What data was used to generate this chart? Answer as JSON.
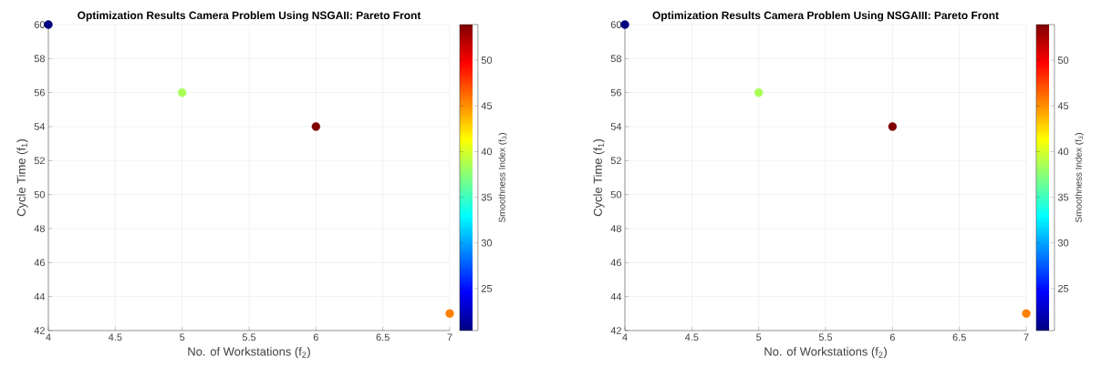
{
  "chart_data": [
    {
      "type": "scatter",
      "title": "Optimization Results Camera Problem Using NSGAII: Pareto Front",
      "xlabel": "No. of Workstations (f$_{2}$)",
      "ylabel": "Cycle Time (f$_{1}$)",
      "clabel": "Smoothness Index (f$_{3}$)",
      "x": [
        4,
        5,
        6,
        7
      ],
      "values": [
        60,
        56,
        54,
        43
      ],
      "cvalues": [
        20.4,
        38.5,
        53.9,
        45.5
      ],
      "xlim": [
        4,
        7
      ],
      "ylim": [
        42,
        60
      ],
      "xticks": [
        4,
        4.5,
        5,
        5.5,
        6,
        6.5,
        7
      ],
      "yticks": [
        42,
        44,
        46,
        48,
        50,
        52,
        54,
        56,
        58,
        60
      ],
      "clim": [
        20.4,
        53.9
      ],
      "cticks": [
        25,
        30,
        35,
        40,
        45,
        50
      ],
      "grid": true,
      "marker": "circle"
    },
    {
      "type": "scatter",
      "title": "Optimization Results Camera Problem Using NSGAIII: Pareto Front",
      "xlabel": "No. of Workstations (f$_{2}$)",
      "ylabel": "Cycle Time (f$_{1}$)",
      "clabel": "Smoothness Index (f$_{3}$)",
      "x": [
        4,
        5,
        6,
        7
      ],
      "values": [
        60,
        56,
        54,
        43
      ],
      "cvalues": [
        20.4,
        38.5,
        53.9,
        45.5
      ],
      "xlim": [
        4,
        7
      ],
      "ylim": [
        42,
        60
      ],
      "xticks": [
        4,
        4.5,
        5,
        5.5,
        6,
        6.5,
        7
      ],
      "yticks": [
        42,
        44,
        46,
        48,
        50,
        52,
        54,
        56,
        58,
        60
      ],
      "clim": [
        20.4,
        53.9
      ],
      "cticks": [
        25,
        30,
        35,
        40,
        45,
        50
      ],
      "grid": true,
      "marker": "circle"
    }
  ]
}
